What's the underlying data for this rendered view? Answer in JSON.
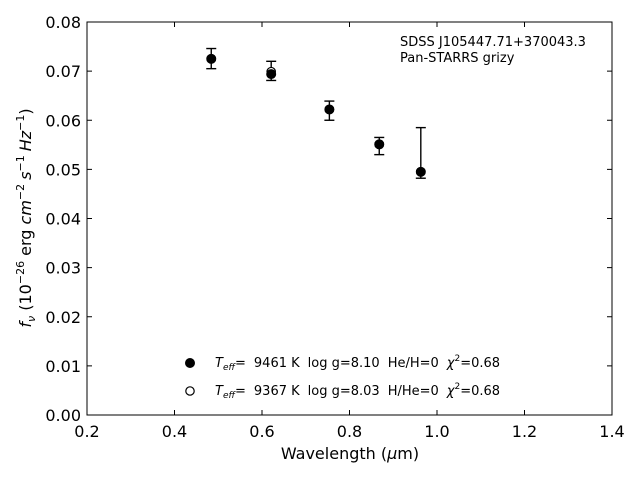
{
  "chart_data": {
    "type": "scatter",
    "title": "",
    "xlabel": "Wavelength (μm)",
    "ylabel": "f_ν (10^-26 erg cm^-2 s^-1 Hz^-1)",
    "xlim": [
      0.2,
      1.4
    ],
    "ylim": [
      0.0,
      0.08
    ],
    "xticks": [
      0.2,
      0.4,
      0.6,
      0.8,
      1.0,
      1.2,
      1.4
    ],
    "yticks": [
      0.0,
      0.01,
      0.02,
      0.03,
      0.04,
      0.05,
      0.06,
      0.07,
      0.08
    ],
    "xtick_labels": [
      "0.2",
      "0.4",
      "0.6",
      "0.8",
      "1.0",
      "1.2",
      "1.4"
    ],
    "ytick_labels": [
      "0.00",
      "0.01",
      "0.02",
      "0.03",
      "0.04",
      "0.05",
      "0.06",
      "0.07",
      "0.08"
    ],
    "grid": false,
    "annotation": [
      "SDSS J105447.71+370043.3",
      "Pan-STARRS grizy"
    ],
    "observed": {
      "x": [
        0.484,
        0.621,
        0.754,
        0.868,
        0.963
      ],
      "y": [
        0.0725,
        0.0701,
        0.0621,
        0.055,
        0.0496
      ],
      "y_low": [
        0.0705,
        0.0681,
        0.06,
        0.053,
        0.0482
      ],
      "y_high": [
        0.0746,
        0.072,
        0.0639,
        0.0565,
        0.0585
      ]
    },
    "series": [
      {
        "marker": "filled",
        "teff": "9461 K",
        "logg": "log g=8.10",
        "comp": "He/H=0",
        "chi2": "=0.68",
        "x": [
          0.484,
          0.621,
          0.754,
          0.868,
          0.963
        ],
        "y": [
          0.0725,
          0.0694,
          0.0622,
          0.0551,
          0.0495
        ]
      },
      {
        "marker": "open",
        "teff": "9367 K",
        "logg": "log g=8.03",
        "comp": "H/He=0",
        "chi2": "=0.68",
        "x": [
          0.484,
          0.621,
          0.754,
          0.868,
          0.963
        ],
        "y": [
          0.0725,
          0.0699,
          0.0622,
          0.0551,
          0.0495
        ]
      }
    ],
    "legend": {
      "teff_symbol": "T",
      "teff_sub": "eff",
      "eq": "=",
      "chi_symbol": "χ",
      "chi_sup": "2"
    },
    "ylabel_parts": {
      "f": "f",
      "nu": "ν",
      "open": " (10",
      "exp1": "−26",
      "erg": " erg ",
      "cm": "cm",
      "exp2": "−2",
      "s": "s",
      "exp3": "−1",
      "hz": "Hz",
      "exp4": "−1",
      "close": ")"
    },
    "xlabel_parts": {
      "main": "Wavelength (",
      "mu": "μ",
      "unit": "m)"
    }
  }
}
